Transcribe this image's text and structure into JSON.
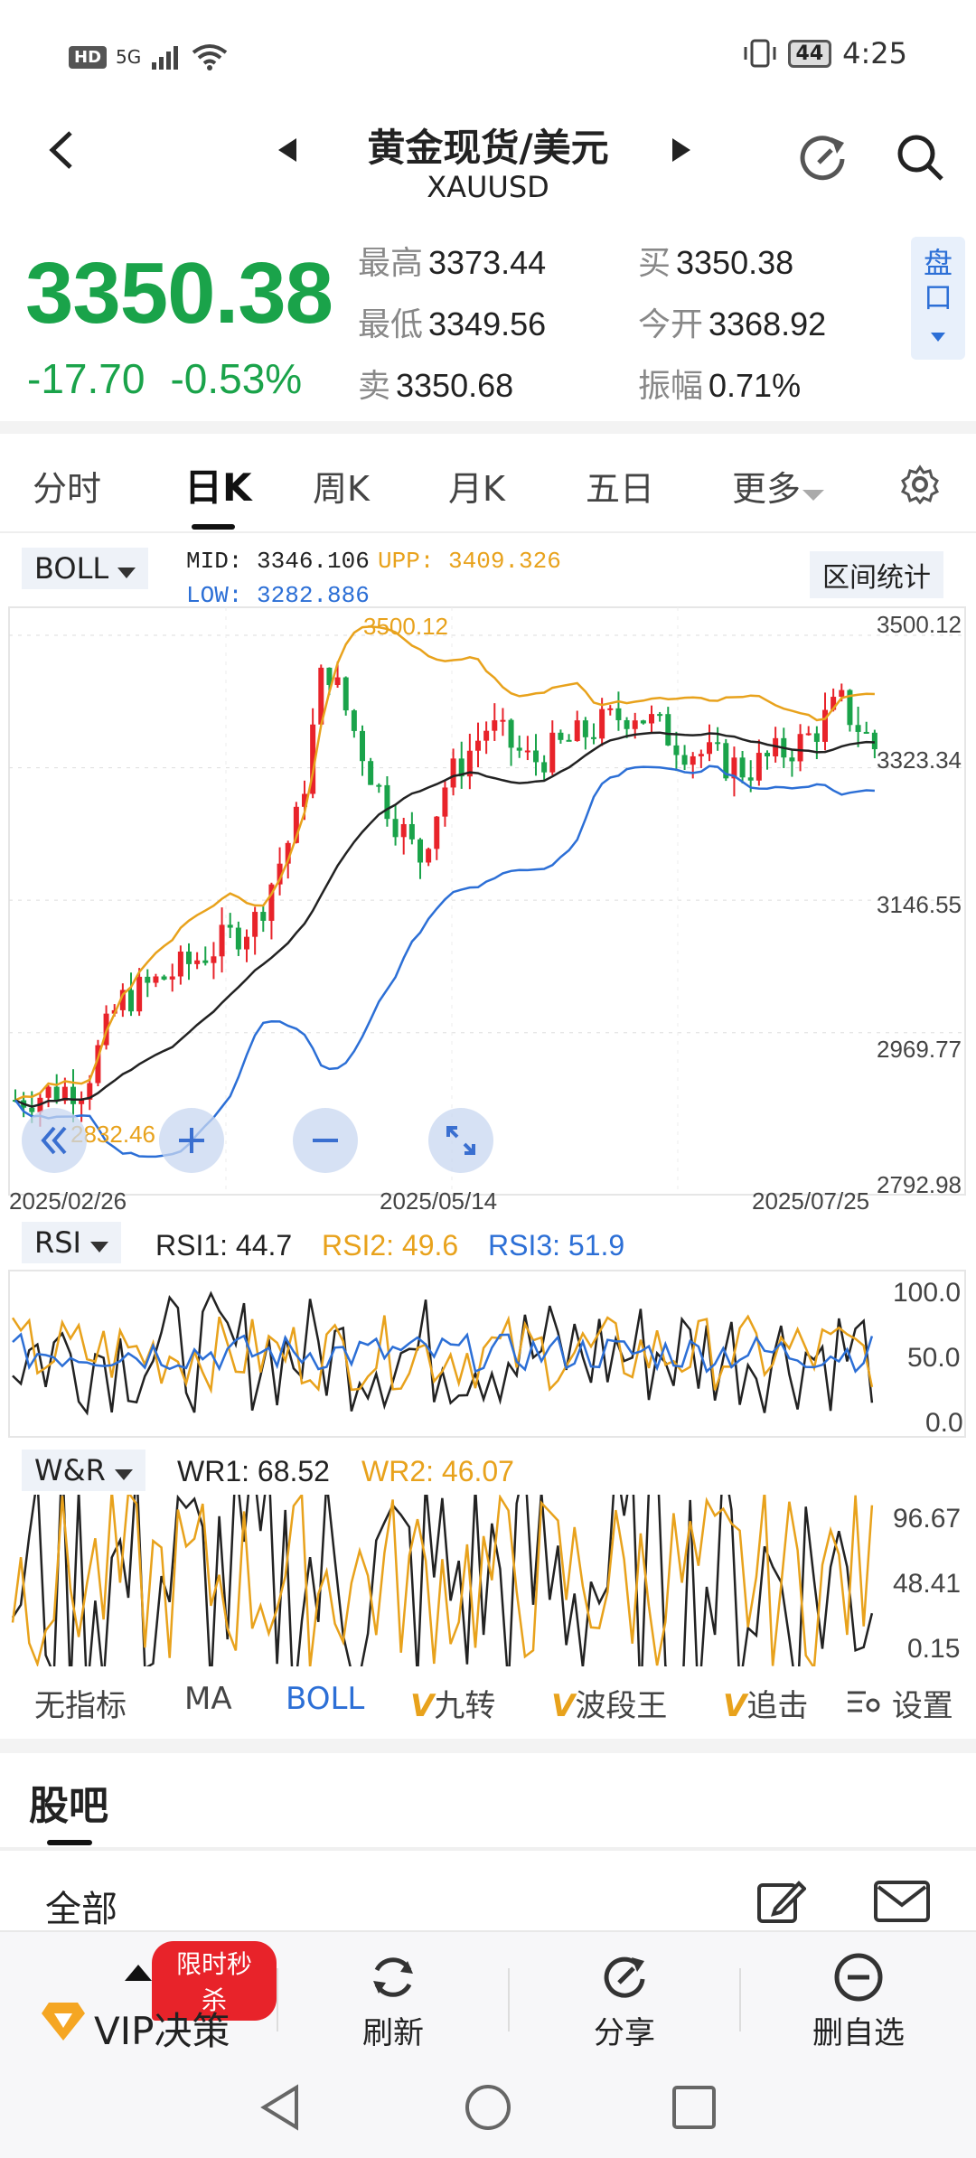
{
  "status_bar": {
    "time": "4:25",
    "battery": "44",
    "network": "5G",
    "hd": "HD"
  },
  "header": {
    "title": "黄金现货/美元",
    "symbol": "XAUUSD"
  },
  "quote": {
    "price": "3350.38",
    "change": "-17.70",
    "change_pct": "-0.53%",
    "high_label": "最高",
    "high": "3373.44",
    "low_label": "最低",
    "low": "3349.56",
    "sell_label": "卖",
    "sell": "3350.68",
    "buy_label": "买",
    "buy": "3350.38",
    "open_label": "今开",
    "open": "3368.92",
    "amp_label": "振幅",
    "amp": "0.71%",
    "pankou": "盘口"
  },
  "tabs": [
    "分时",
    "日K",
    "周K",
    "月K",
    "五日",
    "更多"
  ],
  "active_tab": "日K",
  "main_chart": {
    "indicator": "BOLL",
    "mid": "MID: 3346.106",
    "upp": "UPP: 3409.326",
    "low": "LOW: 3282.886",
    "range_stats": "区间统计",
    "y_ticks": [
      "3500.12",
      "3323.34",
      "3146.55",
      "2969.77",
      "2792.98"
    ],
    "x_ticks": [
      "2025/02/26",
      "2025/05/14",
      "2025/07/25"
    ],
    "max_marker": "3500.12",
    "min_marker": "2832.46",
    "colors": {
      "up": "#e8232a",
      "down": "#1aa34a",
      "upp": "#e8a21c",
      "mid": "#222222",
      "low": "#2c6fd6"
    }
  },
  "rsi": {
    "indicator": "RSI",
    "rsi1": "RSI1: 44.7",
    "rsi2": "RSI2: 49.6",
    "rsi3": "RSI3: 51.9",
    "y_ticks": [
      "100.0",
      "50.0",
      "0.0"
    ]
  },
  "wr": {
    "indicator": "W&R",
    "wr1": "WR1: 68.52",
    "wr2": "WR2: 46.07",
    "y_ticks": [
      "96.67",
      "48.41",
      "0.15"
    ]
  },
  "indicator_tabs": [
    "无指标",
    "MA",
    "BOLL",
    "九转",
    "波段王",
    "追击",
    "设置"
  ],
  "guba": {
    "title": "股吧",
    "filter": "全部"
  },
  "bottom_bar": {
    "vip": "VIP决策",
    "promo": "限时秒杀",
    "refresh": "刷新",
    "share": "分享",
    "remove": "删自选"
  }
}
